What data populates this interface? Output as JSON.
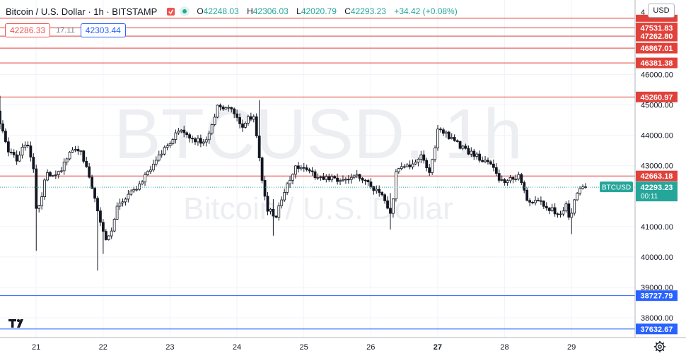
{
  "header": {
    "symbol": "Bitcoin / U.S. Dollar · 1h · BITSTAMP",
    "open": "42248.03",
    "high": "42306.03",
    "low": "42020.79",
    "close": "42293.23",
    "change": "+34.42 (+0.08%)",
    "o_label": "O",
    "h_label": "H",
    "l_label": "L",
    "c_label": "C"
  },
  "trade": {
    "bid": "42286.33",
    "spread": "17.11",
    "ask": "42303.44"
  },
  "currency": "USD",
  "watermark": {
    "ticker": "BTCUSD, 1h",
    "name": "Bitcoin / U.S. Dollar"
  },
  "colors": {
    "up": "#26a69a",
    "down": "#ef5350",
    "candle_body": "#131722",
    "resistance": "#e0413a",
    "support": "#2962ff",
    "price_tag": "#26a69a"
  },
  "chart_data": {
    "type": "candlestick",
    "ylim": [
      37350,
      48450
    ],
    "xlim": [
      20.46,
      29.95
    ],
    "x_ticks": [
      {
        "v": 21,
        "label": "21"
      },
      {
        "v": 22,
        "label": "22"
      },
      {
        "v": 23,
        "label": "23"
      },
      {
        "v": 24,
        "label": "24"
      },
      {
        "v": 25,
        "label": "25"
      },
      {
        "v": 26,
        "label": "26"
      },
      {
        "v": 27,
        "label": "27",
        "bold": true
      },
      {
        "v": 28,
        "label": "28"
      },
      {
        "v": 29,
        "label": "29"
      }
    ],
    "y_ticks": [
      {
        "v": 46000,
        "label": "46000.00"
      },
      {
        "v": 45000,
        "label": "45000.00"
      },
      {
        "v": 44000,
        "label": "44000.00"
      },
      {
        "v": 43000,
        "label": "43000.00"
      },
      {
        "v": 41000,
        "label": "41000.00"
      },
      {
        "v": 40000,
        "label": "40000.00"
      },
      {
        "v": 39000,
        "label": "39000.00"
      },
      {
        "v": 38000,
        "label": "38000.00"
      }
    ],
    "top_clipped_tick": "4",
    "resistance_levels": [
      {
        "value": 47531.83,
        "label": "47531.83"
      },
      {
        "value": 47262.8,
        "label": "47262.80"
      },
      {
        "value": 46867.01,
        "label": "46867.01"
      },
      {
        "value": 46381.38,
        "label": "46381.38"
      },
      {
        "value": 45260.97,
        "label": "45260.97"
      },
      {
        "value": 42663.18,
        "label": "42663.18"
      }
    ],
    "resistance_clipped_value": 47850,
    "support_levels": [
      {
        "value": 38727.79,
        "label": "38727.79"
      },
      {
        "value": 37632.67,
        "label": "37632.67"
      }
    ],
    "current_price": {
      "value": 42293.23,
      "label": "42293.23",
      "symbol": "BTCUSD",
      "countdown": "00:11"
    },
    "anchors": [
      [
        20.46,
        44800
      ],
      [
        20.6,
        43600
      ],
      [
        20.75,
        43200
      ],
      [
        20.9,
        43800
      ],
      [
        21.0,
        43000
      ],
      [
        21.05,
        41300
      ],
      [
        21.2,
        42800
      ],
      [
        21.35,
        42600
      ],
      [
        21.5,
        43300
      ],
      [
        21.7,
        43600
      ],
      [
        21.85,
        42500
      ],
      [
        22.0,
        41100
      ],
      [
        22.1,
        40400
      ],
      [
        22.25,
        41600
      ],
      [
        22.4,
        42000
      ],
      [
        22.55,
        42300
      ],
      [
        22.7,
        42700
      ],
      [
        22.85,
        43200
      ],
      [
        23.0,
        43700
      ],
      [
        23.2,
        44200
      ],
      [
        23.4,
        43900
      ],
      [
        23.55,
        43700
      ],
      [
        23.75,
        44900
      ],
      [
        23.95,
        45000
      ],
      [
        24.1,
        44300
      ],
      [
        24.3,
        44700
      ],
      [
        24.42,
        42400
      ],
      [
        24.5,
        41600
      ],
      [
        24.62,
        41300
      ],
      [
        24.75,
        42200
      ],
      [
        24.9,
        42900
      ],
      [
        25.0,
        43000
      ],
      [
        25.2,
        42700
      ],
      [
        25.4,
        42600
      ],
      [
        25.6,
        42500
      ],
      [
        25.8,
        42700
      ],
      [
        26.0,
        42550
      ],
      [
        26.1,
        42200
      ],
      [
        26.25,
        41900
      ],
      [
        26.35,
        41300
      ],
      [
        26.42,
        42900
      ],
      [
        26.6,
        43000
      ],
      [
        26.8,
        43300
      ],
      [
        26.92,
        42800
      ],
      [
        27.05,
        44200
      ],
      [
        27.2,
        44000
      ],
      [
        27.35,
        43700
      ],
      [
        27.55,
        43400
      ],
      [
        27.7,
        43200
      ],
      [
        27.85,
        43000
      ],
      [
        27.95,
        42600
      ],
      [
        28.1,
        42500
      ],
      [
        28.25,
        42700
      ],
      [
        28.4,
        41800
      ],
      [
        28.55,
        41900
      ],
      [
        28.7,
        41600
      ],
      [
        28.85,
        41400
      ],
      [
        28.97,
        41750
      ],
      [
        29.0,
        41200
      ],
      [
        29.1,
        41900
      ],
      [
        29.2,
        42290
      ]
    ],
    "spikes": [
      [
        20.46,
        45300,
        44200
      ],
      [
        21.0,
        41500,
        40200
      ],
      [
        21.9,
        41700,
        39550
      ],
      [
        22.0,
        41200,
        40100
      ],
      [
        24.34,
        45150,
        43900
      ],
      [
        24.55,
        41900,
        40700
      ],
      [
        26.3,
        42100,
        40900
      ],
      [
        28.99,
        41600,
        40750
      ]
    ]
  }
}
